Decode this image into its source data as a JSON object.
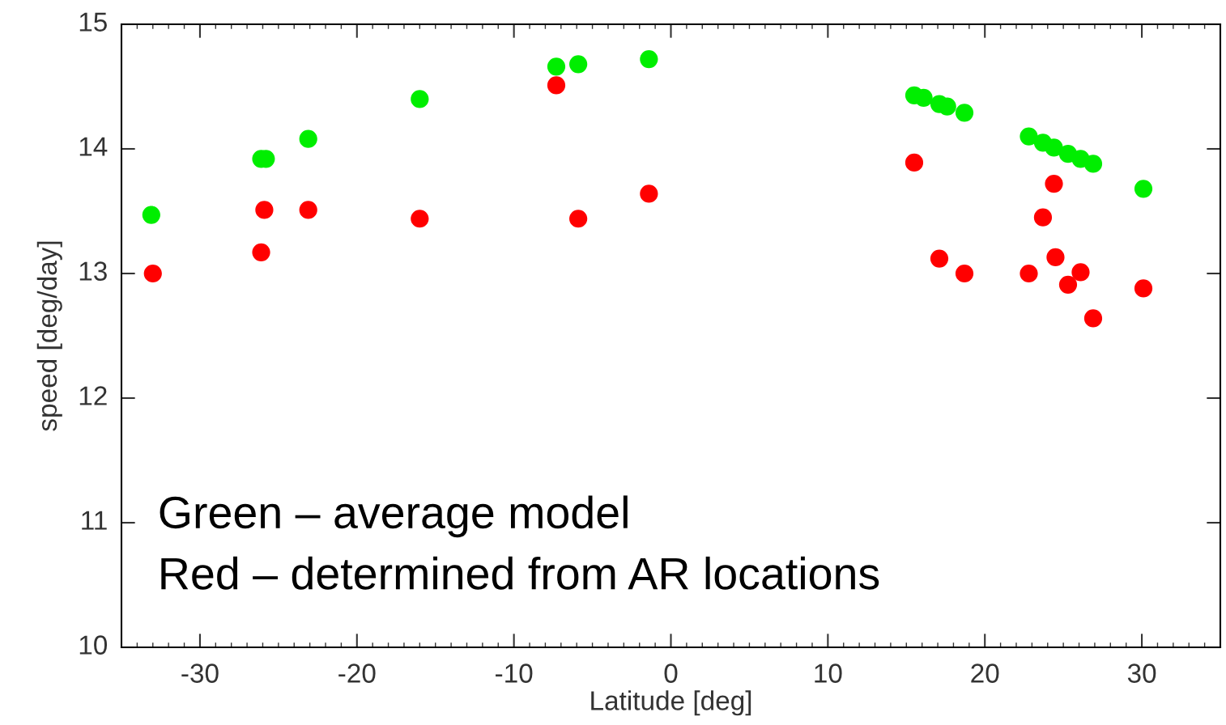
{
  "chart_data": {
    "type": "scatter",
    "xlabel": "Latitude [deg]",
    "ylabel": "speed [deg/day]",
    "xlim": [
      -35,
      35
    ],
    "ylim": [
      10,
      15
    ],
    "xticks": [
      -30,
      -20,
      -10,
      0,
      10,
      20,
      30
    ],
    "yticks": [
      10,
      11,
      12,
      13,
      14,
      15
    ],
    "grid": false,
    "marker": "circle",
    "annotations": [
      "Green – average model",
      "Red – determined from AR locations"
    ],
    "series": [
      {
        "color": "#00ee00",
        "x": [
          -33.1,
          -26.1,
          -25.8,
          -23.1,
          -16.0,
          -7.3,
          -5.9,
          -1.4,
          15.5,
          16.1,
          17.1,
          17.6,
          18.7,
          22.8,
          23.7,
          24.4,
          25.3,
          26.1,
          26.9,
          30.1
        ],
        "values": [
          13.47,
          13.92,
          13.92,
          14.08,
          14.4,
          14.66,
          14.68,
          14.72,
          14.43,
          14.41,
          14.36,
          14.34,
          14.29,
          14.1,
          14.05,
          14.01,
          13.96,
          13.92,
          13.88,
          13.68
        ]
      },
      {
        "color": "#ff0000",
        "x": [
          -33.0,
          -26.1,
          -25.9,
          -23.1,
          -16.0,
          -7.3,
          -5.9,
          -1.4,
          15.5,
          17.1,
          18.7,
          22.8,
          23.7,
          24.4,
          24.5,
          25.3,
          26.1,
          26.9,
          30.1
        ],
        "values": [
          13.0,
          13.17,
          13.51,
          13.51,
          13.44,
          14.51,
          13.44,
          13.64,
          13.89,
          13.12,
          13.0,
          13.0,
          13.45,
          13.72,
          13.13,
          12.91,
          13.01,
          12.64,
          12.88
        ]
      }
    ]
  }
}
